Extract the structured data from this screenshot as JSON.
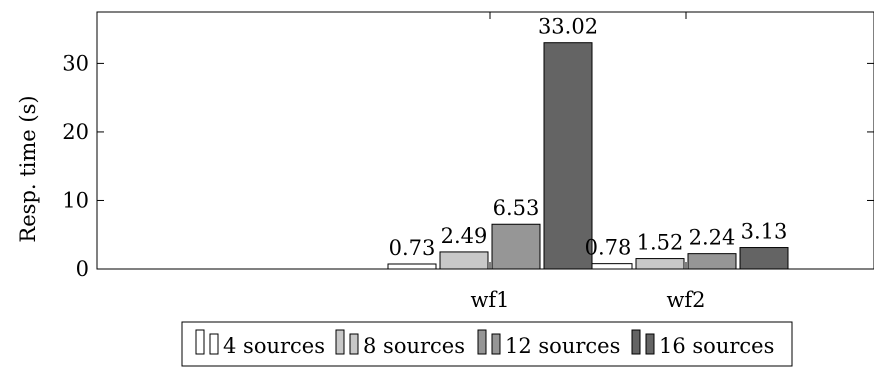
{
  "chart_data": {
    "type": "bar",
    "title": "",
    "xlabel": "",
    "ylabel": "Resp. time (s)",
    "categories": [
      "wf1",
      "wf2"
    ],
    "ylim": [
      0,
      37.5
    ],
    "yticks": [
      0,
      10,
      20,
      30
    ],
    "grid": false,
    "legend_position": "bottom-center",
    "series": [
      {
        "name": "4 sources",
        "values": [
          0.73,
          0.78
        ],
        "labels": [
          "0.73",
          "0.78"
        ],
        "color": "#ffffff"
      },
      {
        "name": "8 sources",
        "values": [
          2.49,
          1.52
        ],
        "labels": [
          "2.49",
          "1.52"
        ],
        "color": "#c8c8c8"
      },
      {
        "name": "12 sources",
        "values": [
          6.53,
          2.24
        ],
        "labels": [
          "6.53",
          "2.24"
        ],
        "color": "#969696"
      },
      {
        "name": "16 sources",
        "values": [
          33.02,
          3.13
        ],
        "labels": [
          "33.02",
          "3.13"
        ],
        "color": "#646464"
      }
    ]
  }
}
